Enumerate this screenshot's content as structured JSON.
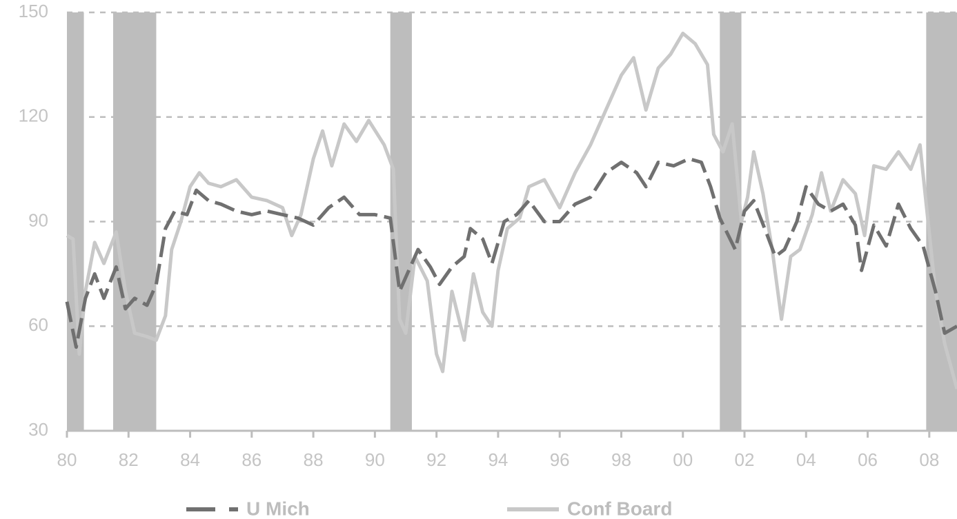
{
  "chart_data": {
    "type": "line",
    "xlim": [
      1980,
      2008.9
    ],
    "ylim": [
      30,
      150
    ],
    "yticks": [
      30,
      60,
      90,
      120,
      150
    ],
    "xticks": [
      {
        "value": 1980,
        "label": "80"
      },
      {
        "value": 1982,
        "label": "82"
      },
      {
        "value": 1984,
        "label": "84"
      },
      {
        "value": 1986,
        "label": "86"
      },
      {
        "value": 1988,
        "label": "88"
      },
      {
        "value": 1990,
        "label": "90"
      },
      {
        "value": 1992,
        "label": "92"
      },
      {
        "value": 1994,
        "label": "94"
      },
      {
        "value": 1996,
        "label": "96"
      },
      {
        "value": 1998,
        "label": "98"
      },
      {
        "value": 2000,
        "label": "00"
      },
      {
        "value": 2002,
        "label": "02"
      },
      {
        "value": 2004,
        "label": "04"
      },
      {
        "value": 2006,
        "label": "06"
      },
      {
        "value": 2008,
        "label": "08"
      }
    ],
    "grid": true,
    "legend": "bottom",
    "shaded_color": "#bdbdbd",
    "shaded_ranges": [
      [
        1980.0,
        1980.55
      ],
      [
        1981.5,
        1982.9
      ],
      [
        1990.5,
        1991.2
      ],
      [
        2001.2,
        2001.9
      ],
      [
        2007.9,
        2008.9
      ]
    ],
    "series": [
      {
        "name": "U Mich",
        "color": "#707070",
        "dashed": true,
        "x": [
          1980.0,
          1980.3,
          1980.6,
          1980.9,
          1981.2,
          1981.6,
          1981.9,
          1982.2,
          1982.6,
          1982.9,
          1983.2,
          1983.5,
          1983.9,
          1984.2,
          1984.6,
          1985.0,
          1985.5,
          1986.0,
          1986.5,
          1987.0,
          1987.5,
          1988.0,
          1988.5,
          1989.0,
          1989.5,
          1990.0,
          1990.5,
          1990.8,
          1991.1,
          1991.4,
          1991.8,
          1992.1,
          1992.5,
          1992.9,
          1993.1,
          1993.5,
          1993.8,
          1994.2,
          1994.6,
          1995.0,
          1995.5,
          1996.0,
          1996.5,
          1997.0,
          1997.5,
          1998.0,
          1998.5,
          1998.8,
          1999.2,
          1999.7,
          2000.2,
          2000.6,
          2000.9,
          2001.2,
          2001.7,
          2002.0,
          2002.3,
          2002.7,
          2003.0,
          2003.3,
          2003.7,
          2004.0,
          2004.4,
          2004.8,
          2005.2,
          2005.6,
          2005.8,
          2006.2,
          2006.6,
          2007.0,
          2007.4,
          2007.8,
          2008.2,
          2008.5,
          2008.9
        ],
        "values": [
          67,
          54,
          68,
          75,
          68,
          77,
          65,
          68,
          66,
          72,
          88,
          93,
          92,
          99,
          96,
          95,
          93,
          92,
          93,
          92,
          91,
          89,
          94,
          97,
          92,
          92,
          91,
          70,
          76,
          82,
          77,
          72,
          77,
          80,
          88,
          85,
          78,
          90,
          92,
          96,
          90,
          90,
          95,
          97,
          104,
          107,
          104,
          100,
          107,
          106,
          108,
          107,
          100,
          91,
          82,
          93,
          96,
          87,
          80,
          82,
          90,
          100,
          95,
          93,
          95,
          89,
          76,
          89,
          83,
          95,
          88,
          83,
          70,
          58,
          60
        ]
      },
      {
        "name": "Conf Board",
        "color": "#c8c8c8",
        "dashed": false,
        "x": [
          1980.0,
          1980.2,
          1980.4,
          1980.6,
          1980.9,
          1981.2,
          1981.6,
          1981.9,
          1982.2,
          1982.6,
          1982.9,
          1983.2,
          1983.4,
          1983.7,
          1984.0,
          1984.3,
          1984.6,
          1985.0,
          1985.5,
          1986.0,
          1986.5,
          1987.0,
          1987.3,
          1987.6,
          1988.0,
          1988.3,
          1988.6,
          1989.0,
          1989.4,
          1989.8,
          1990.3,
          1990.6,
          1990.8,
          1991.0,
          1991.3,
          1991.7,
          1992.0,
          1992.2,
          1992.5,
          1992.9,
          1993.2,
          1993.5,
          1993.8,
          1994.0,
          1994.3,
          1994.7,
          1995.0,
          1995.5,
          1996.0,
          1996.5,
          1997.0,
          1997.5,
          1998.0,
          1998.4,
          1998.8,
          1999.2,
          1999.6,
          2000.0,
          2000.4,
          2000.8,
          2001.0,
          2001.3,
          2001.6,
          2001.9,
          2002.1,
          2002.3,
          2002.6,
          2002.9,
          2003.2,
          2003.5,
          2003.8,
          2004.2,
          2004.5,
          2004.8,
          2005.2,
          2005.6,
          2005.9,
          2006.2,
          2006.6,
          2007.0,
          2007.4,
          2007.7,
          2007.9,
          2008.2,
          2008.5,
          2008.9
        ],
        "values": [
          86,
          85,
          52,
          70,
          84,
          78,
          87,
          70,
          58,
          57,
          56,
          63,
          82,
          90,
          100,
          104,
          101,
          100,
          102,
          97,
          96,
          94,
          86,
          92,
          108,
          116,
          106,
          118,
          113,
          119,
          112,
          105,
          62,
          58,
          80,
          73,
          52,
          47,
          70,
          56,
          75,
          64,
          60,
          76,
          88,
          91,
          100,
          102,
          94,
          104,
          112,
          122,
          132,
          137,
          122,
          134,
          138,
          144,
          141,
          135,
          115,
          110,
          118,
          90,
          97,
          110,
          98,
          82,
          62,
          80,
          82,
          92,
          104,
          93,
          102,
          98,
          86,
          106,
          105,
          110,
          105,
          112,
          95,
          70,
          55,
          42
        ]
      }
    ]
  }
}
